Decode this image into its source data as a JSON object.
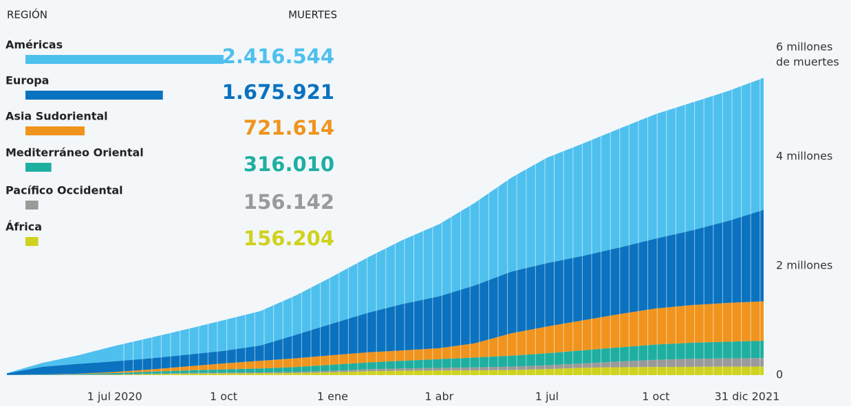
{
  "chart_data": {
    "type": "stacked-area",
    "legend_headers": [
      "REGIÓN",
      "MUERTES"
    ],
    "x": [
      "2020-04-01",
      "2020-05-01",
      "2020-06-01",
      "2020-07-01",
      "2020-08-01",
      "2020-09-01",
      "2020-10-01",
      "2020-11-01",
      "2020-12-01",
      "2021-01-01",
      "2021-02-01",
      "2021-03-01",
      "2021-04-01",
      "2021-05-01",
      "2021-06-01",
      "2021-07-01",
      "2021-08-01",
      "2021-09-01",
      "2021-10-01",
      "2021-11-01",
      "2021-12-01",
      "2021-12-31"
    ],
    "xlim": [
      "2020-04-01",
      "2021-12-31"
    ],
    "xticks": [
      {
        "value": "2020-07-01",
        "label": "1 jul 2020"
      },
      {
        "value": "2020-10-01",
        "label": "1 oct"
      },
      {
        "value": "2021-01-01",
        "label": "1 ene"
      },
      {
        "value": "2021-04-01",
        "label": "1 abr"
      },
      {
        "value": "2021-07-01",
        "label": "1 jul"
      },
      {
        "value": "2021-10-01",
        "label": "1 oct"
      },
      {
        "value": "2021-12-31",
        "label": "31 dic 2021"
      }
    ],
    "ylim": [
      0,
      6000000
    ],
    "yticks": [
      0,
      {
        "value": 2000000,
        "label": "2 millones"
      },
      {
        "value": 4000000,
        "label": "4 millones"
      },
      {
        "value": 6000000,
        "label": "6 millones"
      }
    ],
    "y_unit": "de muertes",
    "series": [
      {
        "name": "Américas",
        "color": "#4ec0ee",
        "total": 2416544,
        "total_label": "2.416.544",
        "values": [
          5000,
          70000,
          160000,
          280000,
          380000,
          470000,
          560000,
          630000,
          720000,
          860000,
          1020000,
          1170000,
          1320000,
          1510000,
          1720000,
          1930000,
          2060000,
          2180000,
          2280000,
          2340000,
          2380000,
          2416544
        ]
      },
      {
        "name": "Europa",
        "color": "#0a72bf",
        "total": 1675921,
        "total_label": "1.675.921",
        "values": [
          30000,
          140000,
          180000,
          195000,
          205000,
          215000,
          230000,
          280000,
          430000,
          580000,
          730000,
          850000,
          950000,
          1060000,
          1130000,
          1160000,
          1180000,
          1220000,
          1280000,
          1370000,
          1500000,
          1675921
        ]
      },
      {
        "name": "Asia Sudoriental",
        "color": "#f0941e",
        "total": 721614,
        "total_label": "721.614",
        "values": [
          100,
          2000,
          6000,
          20000,
          40000,
          75000,
          110000,
          140000,
          160000,
          175000,
          185000,
          190000,
          200000,
          260000,
          410000,
          490000,
          550000,
          610000,
          660000,
          690000,
          710000,
          721614
        ]
      },
      {
        "name": "Mediterráneo Oriental",
        "color": "#1eafa0",
        "total": 316010,
        "total_label": "316.010",
        "values": [
          500,
          5000,
          12000,
          25000,
          38000,
          47000,
          58000,
          72000,
          90000,
          110000,
          125000,
          140000,
          160000,
          180000,
          200000,
          220000,
          240000,
          260000,
          280000,
          295000,
          305000,
          316010
        ]
      },
      {
        "name": "Pacífico Occidental",
        "color": "#9a9a9a",
        "total": 156142,
        "total_label": "156.142",
        "values": [
          500,
          5000,
          7000,
          8000,
          10000,
          14000,
          16000,
          17000,
          20000,
          30000,
          38000,
          42000,
          48000,
          55000,
          63000,
          70000,
          80000,
          105000,
          130000,
          145000,
          152000,
          156142
        ]
      },
      {
        "name": "África",
        "color": "#cfd21e",
        "total": 156204,
        "total_label": "156.204",
        "values": [
          50,
          500,
          2000,
          5000,
          15000,
          25000,
          30000,
          33000,
          38000,
          50000,
          70000,
          80000,
          84000,
          87000,
          92000,
          110000,
          135000,
          145000,
          150000,
          153000,
          155000,
          156204
        ]
      }
    ]
  }
}
